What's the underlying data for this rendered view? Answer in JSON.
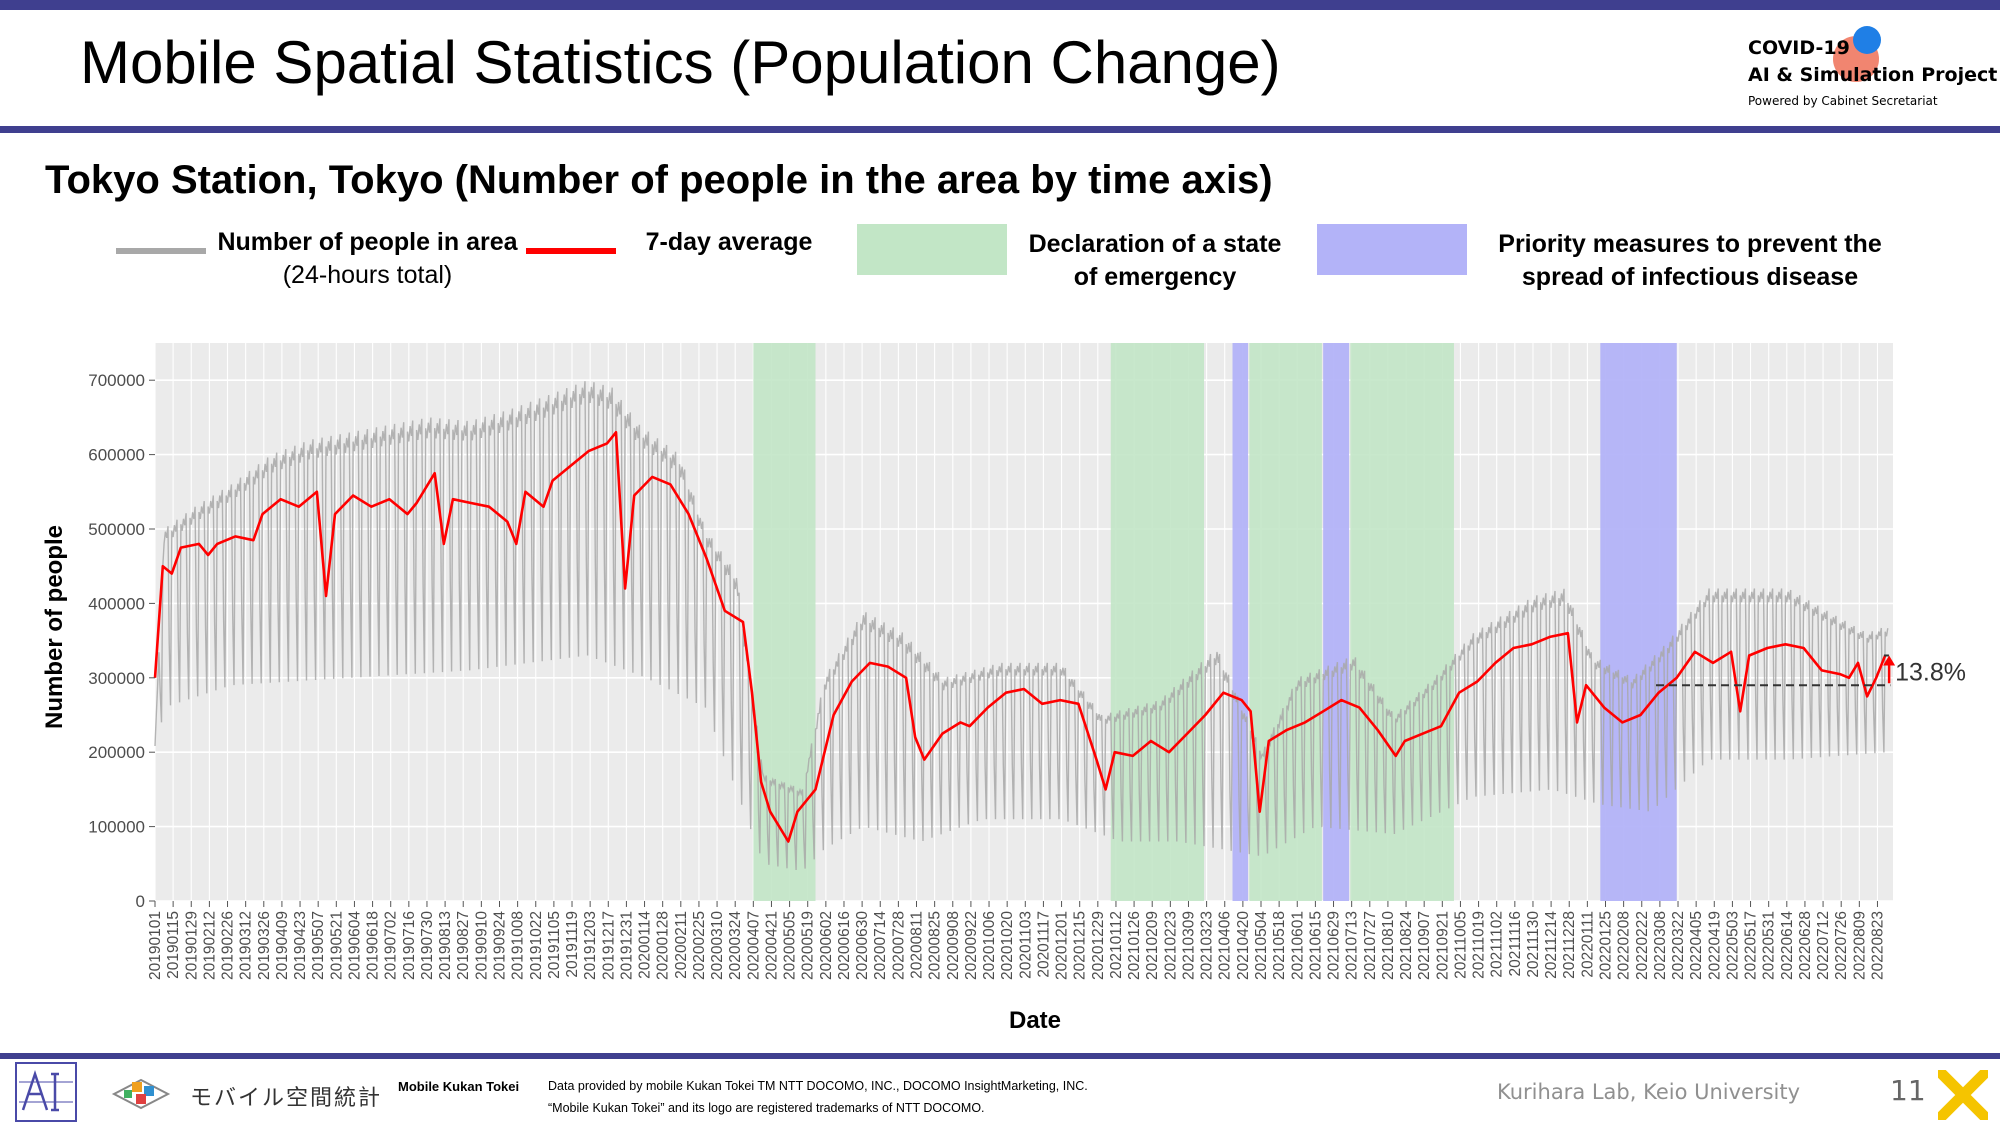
{
  "header": {
    "title": "Mobile Spatial Statistics (Population Change)",
    "logo_line1": "COVID-19",
    "logo_line2": "AI & Simulation Project",
    "logo_line3": "Powered by Cabinet Secretariat"
  },
  "subtitle": "Tokyo Station, Tokyo (Number of people in the area by time axis)",
  "legend": {
    "people_label": "Number of people in area",
    "people_sub": "(24-hours total)",
    "avg_label": "7-day average",
    "emergency_label_1": "Declaration of a state",
    "emergency_label_2": "of emergency",
    "priority_label_1": "Priority measures to prevent the",
    "priority_label_2": "spread of infectious disease"
  },
  "colors": {
    "daily": "#a8a8a8",
    "average": "#ff0000",
    "emergency": "#c2e6c6",
    "priority": "#b3b3f8",
    "plot_bg": "#ebebeb",
    "brand_bar": "#3f3f8f"
  },
  "chart_data": {
    "type": "line",
    "xlabel": "Date",
    "ylabel": "Number of people",
    "ylim": [
      0,
      750000
    ],
    "yticks": [
      0,
      100000,
      200000,
      300000,
      400000,
      500000,
      600000,
      700000
    ],
    "xlim": [
      "2019-01-01",
      "2022-09-04"
    ],
    "xtick_labels": [
      "20190101",
      "20190115",
      "20190129",
      "20190212",
      "20190226",
      "20190312",
      "20190326",
      "20190409",
      "20190423",
      "20190507",
      "20190521",
      "20190604",
      "20190618",
      "20190702",
      "20190716",
      "20190730",
      "20190813",
      "20190827",
      "20190910",
      "20190924",
      "20191008",
      "20191022",
      "20191105",
      "20191119",
      "20191203",
      "20191217",
      "20191231",
      "20200114",
      "20200128",
      "20200211",
      "20200225",
      "20200310",
      "20200324",
      "20200407",
      "20200421",
      "20200505",
      "20200519",
      "20200602",
      "20200616",
      "20200630",
      "20200714",
      "20200728",
      "20200811",
      "20200825",
      "20200908",
      "20200922",
      "20201006",
      "20201020",
      "20201103",
      "20201117",
      "20201201",
      "20201215",
      "20201229",
      "20210112",
      "20210126",
      "20210209",
      "20210223",
      "20210309",
      "20210323",
      "20210406",
      "20210420",
      "20210504",
      "20210518",
      "20210601",
      "20210615",
      "20210629",
      "20210713",
      "20210727",
      "20210810",
      "20210824",
      "20210907",
      "20210921",
      "20211005",
      "20211019",
      "20211102",
      "20211116",
      "20211130",
      "20211214",
      "20211228",
      "20220111",
      "20220125",
      "20220208",
      "20220222",
      "20220308",
      "20220322",
      "20220405",
      "20220419",
      "20220503",
      "20220517",
      "20220531",
      "20220614",
      "20220628",
      "20220712",
      "20220726",
      "20220809",
      "20220823"
    ],
    "emergency_periods": [
      [
        "2020-04-07",
        "2020-05-25"
      ],
      [
        "2021-01-08",
        "2021-03-21"
      ],
      [
        "2021-04-25",
        "2021-06-20"
      ],
      [
        "2021-07-12",
        "2021-09-30"
      ]
    ],
    "priority_periods": [
      [
        "2021-04-12",
        "2021-04-24"
      ],
      [
        "2021-06-21",
        "2021-07-11"
      ],
      [
        "2022-01-21",
        "2022-03-21"
      ]
    ],
    "series": [
      {
        "name": "7-day average",
        "points": [
          [
            "2019-01-01",
            300000
          ],
          [
            "2019-01-07",
            450000
          ],
          [
            "2019-01-14",
            440000
          ],
          [
            "2019-01-21",
            475000
          ],
          [
            "2019-02-04",
            480000
          ],
          [
            "2019-02-11",
            465000
          ],
          [
            "2019-02-18",
            480000
          ],
          [
            "2019-03-04",
            490000
          ],
          [
            "2019-03-18",
            485000
          ],
          [
            "2019-03-25",
            520000
          ],
          [
            "2019-04-08",
            540000
          ],
          [
            "2019-04-22",
            530000
          ],
          [
            "2019-05-06",
            550000
          ],
          [
            "2019-05-13",
            410000
          ],
          [
            "2019-05-20",
            520000
          ],
          [
            "2019-06-03",
            545000
          ],
          [
            "2019-06-17",
            530000
          ],
          [
            "2019-07-01",
            540000
          ],
          [
            "2019-07-15",
            520000
          ],
          [
            "2019-07-22",
            535000
          ],
          [
            "2019-08-05",
            575000
          ],
          [
            "2019-08-12",
            480000
          ],
          [
            "2019-08-19",
            540000
          ],
          [
            "2019-09-02",
            535000
          ],
          [
            "2019-09-16",
            530000
          ],
          [
            "2019-09-30",
            510000
          ],
          [
            "2019-10-07",
            480000
          ],
          [
            "2019-10-14",
            550000
          ],
          [
            "2019-10-28",
            530000
          ],
          [
            "2019-11-04",
            565000
          ],
          [
            "2019-11-18",
            585000
          ],
          [
            "2019-12-02",
            605000
          ],
          [
            "2019-12-16",
            615000
          ],
          [
            "2019-12-23",
            630000
          ],
          [
            "2019-12-30",
            420000
          ],
          [
            "2020-01-06",
            545000
          ],
          [
            "2020-01-20",
            570000
          ],
          [
            "2020-02-03",
            560000
          ],
          [
            "2020-02-17",
            520000
          ],
          [
            "2020-03-02",
            460000
          ],
          [
            "2020-03-16",
            390000
          ],
          [
            "2020-03-30",
            375000
          ],
          [
            "2020-04-06",
            280000
          ],
          [
            "2020-04-13",
            160000
          ],
          [
            "2020-04-20",
            120000
          ],
          [
            "2020-05-04",
            80000
          ],
          [
            "2020-05-11",
            120000
          ],
          [
            "2020-05-25",
            150000
          ],
          [
            "2020-06-08",
            250000
          ],
          [
            "2020-06-22",
            295000
          ],
          [
            "2020-07-06",
            320000
          ],
          [
            "2020-07-20",
            315000
          ],
          [
            "2020-08-03",
            300000
          ],
          [
            "2020-08-10",
            220000
          ],
          [
            "2020-08-17",
            190000
          ],
          [
            "2020-08-31",
            225000
          ],
          [
            "2020-09-14",
            240000
          ],
          [
            "2020-09-21",
            235000
          ],
          [
            "2020-10-05",
            260000
          ],
          [
            "2020-10-19",
            280000
          ],
          [
            "2020-11-02",
            285000
          ],
          [
            "2020-11-16",
            265000
          ],
          [
            "2020-11-30",
            270000
          ],
          [
            "2020-12-14",
            265000
          ],
          [
            "2020-12-28",
            190000
          ],
          [
            "2021-01-04",
            150000
          ],
          [
            "2021-01-11",
            200000
          ],
          [
            "2021-01-25",
            195000
          ],
          [
            "2021-02-08",
            215000
          ],
          [
            "2021-02-22",
            200000
          ],
          [
            "2021-03-08",
            225000
          ],
          [
            "2021-03-22",
            250000
          ],
          [
            "2021-04-05",
            280000
          ],
          [
            "2021-04-19",
            270000
          ],
          [
            "2021-04-26",
            255000
          ],
          [
            "2021-05-03",
            120000
          ],
          [
            "2021-05-10",
            215000
          ],
          [
            "2021-05-24",
            230000
          ],
          [
            "2021-06-07",
            240000
          ],
          [
            "2021-06-21",
            255000
          ],
          [
            "2021-07-05",
            270000
          ],
          [
            "2021-07-19",
            260000
          ],
          [
            "2021-08-02",
            230000
          ],
          [
            "2021-08-16",
            195000
          ],
          [
            "2021-08-23",
            215000
          ],
          [
            "2021-09-06",
            225000
          ],
          [
            "2021-09-20",
            235000
          ],
          [
            "2021-10-04",
            280000
          ],
          [
            "2021-10-18",
            295000
          ],
          [
            "2021-11-01",
            320000
          ],
          [
            "2021-11-15",
            340000
          ],
          [
            "2021-11-29",
            345000
          ],
          [
            "2021-12-13",
            355000
          ],
          [
            "2021-12-27",
            360000
          ],
          [
            "2022-01-03",
            240000
          ],
          [
            "2022-01-10",
            290000
          ],
          [
            "2022-01-24",
            260000
          ],
          [
            "2022-02-07",
            240000
          ],
          [
            "2022-02-21",
            250000
          ],
          [
            "2022-03-07",
            280000
          ],
          [
            "2022-03-21",
            300000
          ],
          [
            "2022-04-04",
            335000
          ],
          [
            "2022-04-18",
            320000
          ],
          [
            "2022-05-02",
            335000
          ],
          [
            "2022-05-09",
            255000
          ],
          [
            "2022-05-16",
            330000
          ],
          [
            "2022-05-30",
            340000
          ],
          [
            "2022-06-13",
            345000
          ],
          [
            "2022-06-27",
            340000
          ],
          [
            "2022-07-11",
            310000
          ],
          [
            "2022-07-25",
            305000
          ],
          [
            "2022-08-01",
            300000
          ],
          [
            "2022-08-08",
            320000
          ],
          [
            "2022-08-15",
            275000
          ],
          [
            "2022-08-22",
            300000
          ],
          [
            "2022-08-29",
            330000
          ]
        ]
      }
    ],
    "daily_envelope": {
      "name": "Number of people in area",
      "weekday": [
        [
          "2019-01-01",
          210000
        ],
        [
          "2019-01-08",
          500000
        ],
        [
          "2019-02-01",
          530000
        ],
        [
          "2019-03-01",
          560000
        ],
        [
          "2019-04-01",
          600000
        ],
        [
          "2019-05-01",
          620000
        ],
        [
          "2019-06-01",
          630000
        ],
        [
          "2019-07-01",
          640000
        ],
        [
          "2019-08-01",
          650000
        ],
        [
          "2019-09-01",
          645000
        ],
        [
          "2019-10-01",
          660000
        ],
        [
          "2019-11-01",
          680000
        ],
        [
          "2019-12-01",
          700000
        ],
        [
          "2019-12-20",
          690000
        ],
        [
          "2020-01-10",
          640000
        ],
        [
          "2020-02-10",
          600000
        ],
        [
          "2020-03-01",
          500000
        ],
        [
          "2020-03-25",
          440000
        ],
        [
          "2020-04-15",
          170000
        ],
        [
          "2020-05-15",
          150000
        ],
        [
          "2020-06-01",
          300000
        ],
        [
          "2020-07-01",
          390000
        ],
        [
          "2020-08-01",
          360000
        ],
        [
          "2020-09-01",
          300000
        ],
        [
          "2020-10-15",
          320000
        ],
        [
          "2020-12-01",
          320000
        ],
        [
          "2021-01-01",
          250000
        ],
        [
          "2021-02-15",
          270000
        ],
        [
          "2021-03-31",
          340000
        ],
        [
          "2021-05-05",
          200000
        ],
        [
          "2021-06-01",
          300000
        ],
        [
          "2021-07-15",
          330000
        ],
        [
          "2021-08-15",
          250000
        ],
        [
          "2021-09-15",
          300000
        ],
        [
          "2021-10-15",
          360000
        ],
        [
          "2021-12-01",
          410000
        ],
        [
          "2021-12-25",
          420000
        ],
        [
          "2022-01-15",
          330000
        ],
        [
          "2022-02-15",
          300000
        ],
        [
          "2022-03-15",
          350000
        ],
        [
          "2022-04-15",
          420000
        ],
        [
          "2022-06-15",
          420000
        ],
        [
          "2022-07-15",
          390000
        ],
        [
          "2022-08-15",
          360000
        ],
        [
          "2022-08-31",
          370000
        ]
      ],
      "weekend": [
        [
          "2019-01-01",
          190000
        ],
        [
          "2019-01-08",
          260000
        ],
        [
          "2019-03-01",
          290000
        ],
        [
          "2019-06-01",
          300000
        ],
        [
          "2019-09-01",
          310000
        ],
        [
          "2019-12-01",
          330000
        ],
        [
          "2020-01-15",
          300000
        ],
        [
          "2020-03-01",
          260000
        ],
        [
          "2020-04-15",
          50000
        ],
        [
          "2020-05-15",
          40000
        ],
        [
          "2020-06-01",
          70000
        ],
        [
          "2020-07-01",
          100000
        ],
        [
          "2020-08-15",
          80000
        ],
        [
          "2020-10-01",
          110000
        ],
        [
          "2020-12-01",
          110000
        ],
        [
          "2021-01-15",
          80000
        ],
        [
          "2021-03-01",
          80000
        ],
        [
          "2021-05-05",
          60000
        ],
        [
          "2021-06-15",
          100000
        ],
        [
          "2021-08-15",
          90000
        ],
        [
          "2021-10-15",
          140000
        ],
        [
          "2021-12-15",
          150000
        ],
        [
          "2022-01-20",
          130000
        ],
        [
          "2022-03-01",
          120000
        ],
        [
          "2022-04-15",
          190000
        ],
        [
          "2022-06-15",
          190000
        ],
        [
          "2022-08-31",
          200000
        ]
      ]
    },
    "annotation": {
      "text": "13.8%",
      "from": 290000,
      "to": 330000
    }
  },
  "footer": {
    "brand_name": "Mobile Kukan Tokei",
    "logo_text": "モバイル空間統計",
    "credit_line1": "Data provided by mobile Kukan Tokei TM NTT DOCOMO, INC., DOCOMO InsightMarketing, INC.",
    "credit_line2": "“Mobile Kukan Tokei” and its logo are registered trademarks of NTT DOCOMO.",
    "lab": "Kurihara Lab, Keio University",
    "page_number": "11"
  }
}
